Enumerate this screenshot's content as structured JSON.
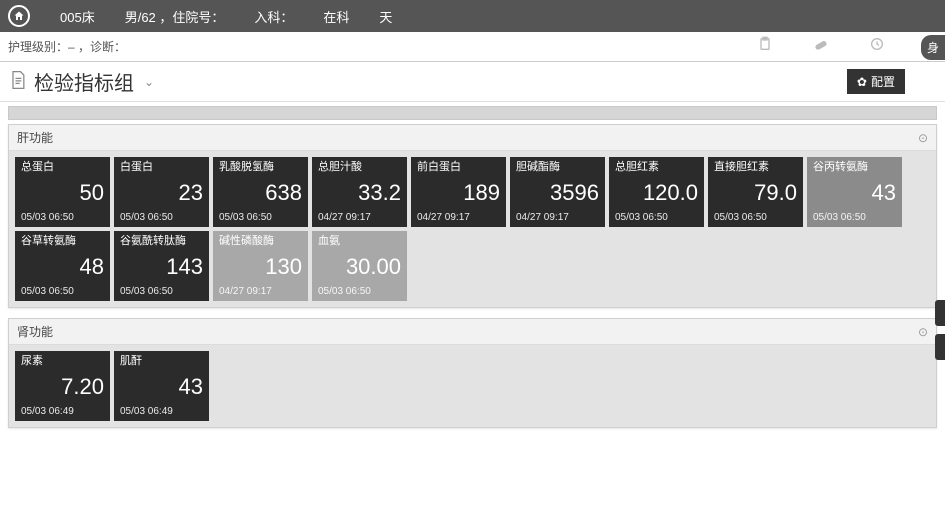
{
  "topbar": {
    "bed": "005床",
    "patient": "男/62 ，住院号：",
    "admit": "入科：",
    "inward": "在科",
    "days": "天"
  },
  "subbar": {
    "text": "护理级别：– ，诊断：",
    "pill": "身"
  },
  "title": {
    "text": "检验指标组",
    "config": "配置"
  },
  "panels": [
    {
      "name": "肝功能",
      "cards": [
        {
          "label": "总蛋白",
          "value": "50",
          "ts": "05/03 06:50",
          "tone": "dark"
        },
        {
          "label": "白蛋白",
          "value": "23",
          "ts": "05/03 06:50",
          "tone": "dark"
        },
        {
          "label": "乳酸脱氢酶",
          "value": "638",
          "ts": "05/03 06:50",
          "tone": "dark"
        },
        {
          "label": "总胆汁酸",
          "value": "33.2",
          "ts": "04/27 09:17",
          "tone": "dark"
        },
        {
          "label": "前白蛋白",
          "value": "189",
          "ts": "04/27 09:17",
          "tone": "dark"
        },
        {
          "label": "胆碱酯酶",
          "value": "3596",
          "ts": "04/27 09:17",
          "tone": "dark"
        },
        {
          "label": "总胆红素",
          "value": "120.0",
          "ts": "05/03 06:50",
          "tone": "dark"
        },
        {
          "label": "直接胆红素",
          "value": "79.0",
          "ts": "05/03 06:50",
          "tone": "dark"
        },
        {
          "label": "谷丙转氨酶",
          "value": "43",
          "ts": "05/03 06:50",
          "tone": "mid"
        },
        {
          "label": "谷草转氨酶",
          "value": "48",
          "ts": "05/03 06:50",
          "tone": "dark"
        },
        {
          "label": "谷氨酰转肽酶",
          "value": "143",
          "ts": "05/03 06:50",
          "tone": "dark"
        },
        {
          "label": "碱性磷酸酶",
          "value": "130",
          "ts": "04/27 09:17",
          "tone": "lite"
        },
        {
          "label": "血氨",
          "value": "30.00",
          "ts": "05/03 06:50",
          "tone": "lite"
        }
      ]
    },
    {
      "name": "肾功能",
      "cards": [
        {
          "label": "尿素",
          "value": "7.20",
          "ts": "05/03 06:49",
          "tone": "dark"
        },
        {
          "label": "肌酐",
          "value": "43",
          "ts": "05/03 06:49",
          "tone": "dark"
        }
      ]
    }
  ],
  "colors": {
    "dark": "#2b2b2b",
    "mid": "#8b8b8b",
    "lite": "#a8a8a8",
    "topbar": "#555555"
  }
}
